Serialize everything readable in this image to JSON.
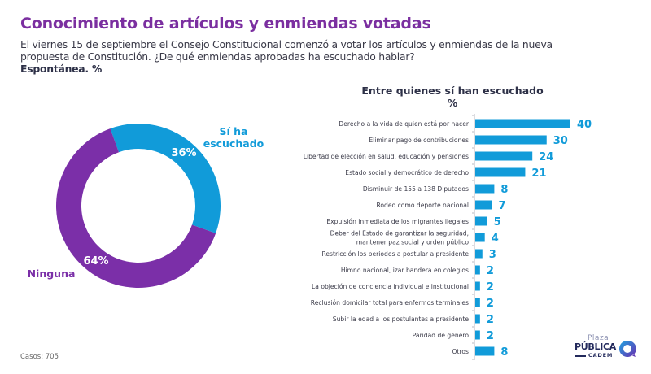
{
  "header": {
    "title": "Conocimiento de artículos y enmiendas votadas",
    "description_lines": [
      "El viernes 15 de septiembre el Consejo Constitucional comenzó a votar los artículos y enmiendas de la nueva",
      "propuesta de Constitución. ¿De qué enmiendas aprobadas ha escuchado hablar?"
    ],
    "note": "Espontánea. %"
  },
  "footer": {
    "casos": "Casos: 705"
  },
  "logo": {
    "plaza": "Plaza",
    "publica": "PÚBLICA",
    "cadem": "CADEM"
  },
  "colors": {
    "purple": "#7b2fa8",
    "blue": "#119bd9",
    "title": "#7b2fa0",
    "navy": "#2d3047"
  },
  "chart_data": [
    {
      "type": "pie",
      "variant": "donut",
      "slices": [
        {
          "label": "Sí ha escuchado",
          "label_lines": [
            "Sí ha",
            "escuchado"
          ],
          "value": 36,
          "value_label": "36%",
          "color": "#119bd9"
        },
        {
          "label": "Ninguna",
          "label_lines": [
            "Ninguna"
          ],
          "value": 64,
          "value_label": "64%",
          "color": "#7b2fa8"
        }
      ]
    },
    {
      "type": "bar",
      "orientation": "horizontal",
      "title": "Entre quienes sí han escuchado",
      "subtitle": "%",
      "xlim": [
        0,
        40
      ],
      "grid": false,
      "color": "#119bd9",
      "categories": [
        [
          "Derecho a la vida de quien está por nacer"
        ],
        [
          "Eliminar pago de contribuciones"
        ],
        [
          "Libertad de elección en salud, educación y pensiones"
        ],
        [
          "Estado social y democrático de derecho"
        ],
        [
          "Disminuir de 155 a 138 Diputados"
        ],
        [
          "Rodeo como deporte nacional"
        ],
        [
          "Expulsión inmediata de los migrantes ilegales"
        ],
        [
          "Deber del Estado de garantizar la seguridad,",
          "mantener paz social y orden público"
        ],
        [
          "Restricción los periodos a postular a presidente"
        ],
        [
          "Himno nacional, izar bandera en colegios"
        ],
        [
          "La objeción de conciencia individual e institucional"
        ],
        [
          "Reclusión domicilar total para enfermos terminales"
        ],
        [
          "Subir la edad a los postulantes a presidente"
        ],
        [
          "Paridad de genero"
        ],
        [
          "Otros"
        ]
      ],
      "values": [
        40,
        30,
        24,
        21,
        8,
        7,
        5,
        4,
        3,
        2,
        2,
        2,
        2,
        2,
        8
      ]
    }
  ]
}
